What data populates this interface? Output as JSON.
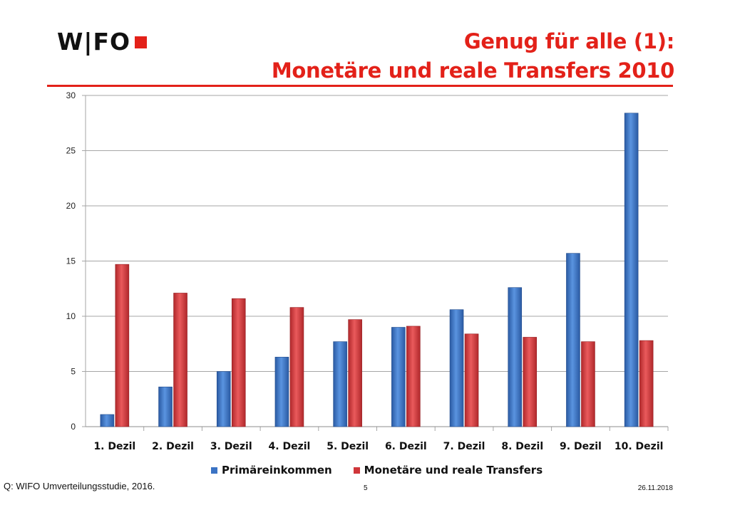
{
  "header": {
    "logo_text": "W|FO",
    "title_line1": "Genug für alle (1):",
    "title_line2": "Monetäre und reale Transfers 2010"
  },
  "colors": {
    "accent": "#e32119",
    "series_blue": "#3b73c4",
    "series_red": "#d0363a",
    "grid": "#a6a6a6"
  },
  "chart_data": {
    "type": "bar",
    "title": "",
    "xlabel": "",
    "ylabel": "",
    "ylim": [
      0,
      30
    ],
    "yticks": [
      0,
      5,
      10,
      15,
      20,
      25,
      30
    ],
    "grid": true,
    "legend_position": "bottom",
    "categories": [
      "1. Dezil",
      "2. Dezil",
      "3. Dezil",
      "4. Dezil",
      "5. Dezil",
      "6. Dezil",
      "7. Dezil",
      "8. Dezil",
      "9. Dezil",
      "10. Dezil"
    ],
    "series": [
      {
        "name": "Primäreinkommen",
        "color": "#3b73c4",
        "values": [
          1.1,
          3.6,
          5.0,
          6.3,
          7.7,
          9.0,
          10.6,
          12.6,
          15.7,
          28.4
        ]
      },
      {
        "name": "Monetäre und reale Transfers",
        "color": "#d0363a",
        "values": [
          14.7,
          12.1,
          11.6,
          10.8,
          9.7,
          9.1,
          8.4,
          8.1,
          7.7,
          7.8
        ]
      }
    ]
  },
  "footer": {
    "source": "Q: WIFO Umverteilungsstudie, 2016.",
    "page": "5",
    "date": "26.11.2018"
  }
}
